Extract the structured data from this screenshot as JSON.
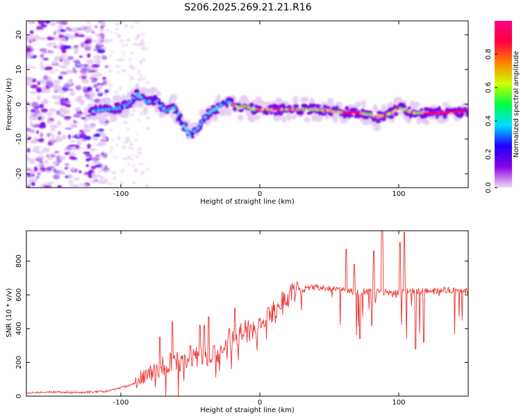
{
  "chart_data": [
    {
      "type": "heatmap",
      "title": "S206.2025.269.21.21.R16",
      "xlabel": "Height of straight line (km)",
      "ylabel": "Frequency (Hz)",
      "xlim": [
        -168,
        150
      ],
      "ylim": [
        -24,
        24
      ],
      "xticks": [
        -100,
        0,
        100
      ],
      "yticks": [
        -20,
        -10,
        0,
        10,
        20
      ],
      "colorbar": {
        "label": "Normalized spectral amplitude",
        "range": [
          0,
          1
        ],
        "ticks": [
          "0.0",
          "0.2",
          "0.4",
          "0.6",
          "0.8"
        ],
        "colormap": [
          "#f2dcf2",
          "#8a00e8",
          "#2000ff",
          "#00e0ff",
          "#00ff40",
          "#d0ff00",
          "#ff8000",
          "#ff0040",
          "#ff007f"
        ]
      },
      "ridge": {
        "description_points": [
          [
            -120,
            -2
          ],
          [
            -110,
            -1.5
          ],
          [
            -100,
            -1
          ],
          [
            -95,
            0
          ],
          [
            -88,
            3
          ],
          [
            -82,
            0.5
          ],
          [
            -75,
            1.5
          ],
          [
            -68,
            -2
          ],
          [
            -62,
            -1
          ],
          [
            -55,
            -6
          ],
          [
            -50,
            -9
          ],
          [
            -45,
            -7
          ],
          [
            -40,
            -4
          ],
          [
            -35,
            -2
          ],
          [
            -30,
            -1
          ],
          [
            -25,
            1
          ],
          [
            -20,
            0
          ],
          [
            -15,
            -1
          ],
          [
            -10,
            -0.5
          ],
          [
            -5,
            -1.5
          ],
          [
            0,
            -1.5
          ],
          [
            10,
            -1.5
          ],
          [
            20,
            -1.5
          ],
          [
            40,
            -1.5
          ],
          [
            55,
            -2.2
          ],
          [
            70,
            -2.5
          ],
          [
            80,
            -3
          ],
          [
            85,
            -3.8
          ],
          [
            90,
            -3
          ],
          [
            95,
            -2.5
          ],
          [
            100,
            -1
          ],
          [
            110,
            -2.5
          ],
          [
            130,
            -2.5
          ],
          [
            148,
            -2
          ]
        ]
      }
    },
    {
      "type": "line",
      "xlabel": "Height of straight line (km)",
      "ylabel": "SNR (10 * v/v)",
      "xlim": [
        -168,
        150
      ],
      "ylim": [
        0,
        980
      ],
      "xticks": [
        -100,
        0,
        100
      ],
      "yticks": [
        0,
        200,
        400,
        600,
        800
      ],
      "color": "#ee3030",
      "series": [
        {
          "name": "SNR",
          "x": [
            -168,
            -150,
            -130,
            -110,
            -95,
            -85,
            -75,
            -65,
            -55,
            -45,
            -35,
            -25,
            -15,
            -5,
            5,
            15,
            25,
            35,
            45,
            55,
            65,
            75,
            85,
            95,
            105,
            115,
            125,
            135,
            150
          ],
          "values": [
            20,
            25,
            20,
            30,
            60,
            100,
            150,
            200,
            210,
            230,
            240,
            300,
            370,
            420,
            460,
            560,
            620,
            640,
            640,
            630,
            620,
            620,
            620,
            610,
            620,
            620,
            620,
            630,
            620
          ],
          "spikes": [
            [
              -72,
              350
            ],
            [
              -63,
              440
            ],
            [
              -50,
              300
            ],
            [
              -43,
              420
            ],
            [
              -40,
              420
            ],
            [
              -37,
              470
            ],
            [
              -33,
              300
            ],
            [
              -22,
              400
            ],
            [
              -18,
              520
            ],
            [
              62,
              870
            ],
            [
              68,
              780
            ],
            [
              72,
              340
            ],
            [
              82,
              860
            ],
            [
              88,
              990
            ],
            [
              101,
              910
            ],
            [
              104,
              970
            ],
            [
              112,
              280
            ],
            [
              118,
              320
            ]
          ]
        }
      ]
    }
  ]
}
